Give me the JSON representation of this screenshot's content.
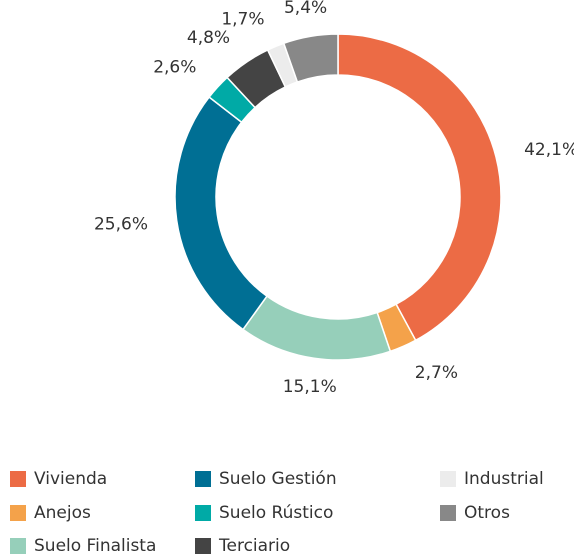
{
  "chart_data": {
    "type": "donut",
    "categories": [
      "Vivienda",
      "Anejos",
      "Suelo Finalista",
      "Suelo Gestión",
      "Suelo Rústico",
      "Terciario",
      "Industrial",
      "Otros"
    ],
    "values": [
      42.1,
      2.7,
      15.1,
      25.6,
      2.6,
      4.8,
      1.7,
      5.4
    ],
    "value_labels": [
      "42,1%",
      "2,7%",
      "15,1%",
      "25,6%",
      "2,6%",
      "4,8%",
      "1,7%",
      "5,4%"
    ],
    "colors": [
      "#ec6b45",
      "#f4a24a",
      "#96cfba",
      "#006f94",
      "#00aaa6",
      "#444444",
      "#ececec",
      "#888888"
    ],
    "legend": "bottom"
  }
}
